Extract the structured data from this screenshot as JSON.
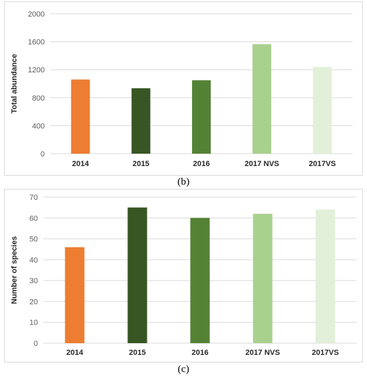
{
  "chart_data": [
    {
      "type": "bar",
      "title": "",
      "caption": "(b)",
      "ylabel": "Total abundance",
      "xlabel": "",
      "categories": [
        "2014",
        "2015",
        "2016",
        "2017 NVS",
        "2017VS"
      ],
      "values": [
        1060,
        935,
        1050,
        1565,
        1240
      ],
      "colors": [
        "#ed7d31",
        "#375623",
        "#548235",
        "#a9d18e",
        "#e2efd9"
      ],
      "ylim": [
        0,
        2000
      ],
      "yticks": [
        "0",
        "400",
        "800",
        "1200",
        "1600",
        "2000"
      ],
      "grid": true
    },
    {
      "type": "bar",
      "title": "",
      "caption": "(c)",
      "ylabel": "Number of species",
      "xlabel": "",
      "categories": [
        "2014",
        "2015",
        "2016",
        "2017 NVS",
        "2017VS"
      ],
      "values": [
        46,
        65,
        60,
        62,
        64
      ],
      "colors": [
        "#ed7d31",
        "#375623",
        "#548235",
        "#a9d18e",
        "#e2efd9"
      ],
      "ylim": [
        0,
        70
      ],
      "yticks": [
        "0",
        "10",
        "20",
        "30",
        "40",
        "50",
        "60",
        "70"
      ],
      "grid": true
    }
  ]
}
